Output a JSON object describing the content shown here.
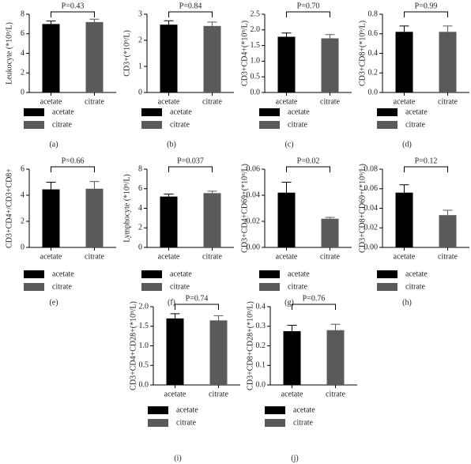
{
  "chart_data": [
    {
      "type": "bar",
      "panel": "(a)",
      "ylabel": "Leukocyte (*10⁹/L)",
      "annotation": "P=0.43",
      "categories": [
        "acetate",
        "citrate"
      ],
      "series": [
        {
          "name": "acetate",
          "color": "#000000",
          "values": [
            7.0,
            null
          ],
          "errors": [
            0.3,
            null
          ]
        },
        {
          "name": "citrate",
          "color": "#5a5a5a",
          "values": [
            null,
            7.2
          ],
          "errors": [
            null,
            0.3
          ]
        }
      ],
      "ylim": [
        0,
        8
      ],
      "yticks": [
        0,
        2,
        4,
        6,
        8
      ]
    },
    {
      "type": "bar",
      "panel": "(b)",
      "ylabel": "CD3+(*10⁹/L)",
      "annotation": "P=0.84",
      "categories": [
        "acetate",
        "citrate"
      ],
      "series": [
        {
          "name": "acetate",
          "color": "#000000",
          "values": [
            2.6,
            null
          ],
          "errors": [
            0.15,
            null
          ]
        },
        {
          "name": "citrate",
          "color": "#5a5a5a",
          "values": [
            null,
            2.55
          ],
          "errors": [
            null,
            0.15
          ]
        }
      ],
      "ylim": [
        0,
        3
      ],
      "yticks": [
        0,
        1,
        2,
        3
      ]
    },
    {
      "type": "bar",
      "panel": "(c)",
      "ylabel": "CD3+CD4+(*10⁹/L)",
      "annotation": "P=0.70",
      "categories": [
        "acetate",
        "citrate"
      ],
      "series": [
        {
          "name": "acetate",
          "color": "#000000",
          "values": [
            1.78,
            null
          ],
          "errors": [
            0.12,
            null
          ]
        },
        {
          "name": "citrate",
          "color": "#5a5a5a",
          "values": [
            null,
            1.73
          ],
          "errors": [
            null,
            0.12
          ]
        }
      ],
      "ylim": [
        0,
        2.5
      ],
      "yticks": [
        {
          "value": 0,
          "label": "0.0"
        },
        0.5,
        {
          "value": 1,
          "label": "1.0"
        },
        1.5,
        {
          "value": 2,
          "label": "2.0"
        },
        2.5
      ]
    },
    {
      "type": "bar",
      "panel": "(d)",
      "ylabel": "CD3+CD8+(*10⁹/L)",
      "annotation": "P=0.99",
      "categories": [
        "acetate",
        "citrate"
      ],
      "series": [
        {
          "name": "acetate",
          "color": "#000000",
          "values": [
            0.62,
            null
          ],
          "errors": [
            0.06,
            null
          ]
        },
        {
          "name": "citrate",
          "color": "#5a5a5a",
          "values": [
            null,
            0.62
          ],
          "errors": [
            null,
            0.06
          ]
        }
      ],
      "ylim": [
        0,
        0.8
      ],
      "yticks": [
        {
          "value": 0,
          "label": "0.0"
        },
        0.2,
        0.4,
        0.6,
        0.8
      ]
    },
    {
      "type": "bar",
      "panel": "(e)",
      "ylabel": "CD3+CD4+/CD3+CD8+",
      "annotation": "P=0.66",
      "categories": [
        "acetate",
        "citrate"
      ],
      "series": [
        {
          "name": "acetate",
          "color": "#000000",
          "values": [
            4.45,
            null
          ],
          "errors": [
            0.55,
            null
          ]
        },
        {
          "name": "citrate",
          "color": "#5a5a5a",
          "values": [
            null,
            4.5
          ],
          "errors": [
            null,
            0.55
          ]
        }
      ],
      "ylim": [
        0,
        6
      ],
      "yticks": [
        0,
        2,
        4,
        6
      ]
    },
    {
      "type": "bar",
      "panel": "(f)",
      "ylabel": "Lymphocyte (*10⁹/L)",
      "annotation": "P=0.037",
      "categories": [
        "acetate",
        "citrate"
      ],
      "series": [
        {
          "name": "acetate",
          "color": "#000000",
          "values": [
            5.2,
            null
          ],
          "errors": [
            0.25,
            null
          ]
        },
        {
          "name": "citrate",
          "color": "#5a5a5a",
          "values": [
            null,
            5.55
          ],
          "errors": [
            null,
            0.2
          ]
        }
      ],
      "ylim": [
        0,
        8
      ],
      "yticks": [
        0,
        2,
        4,
        6,
        8
      ]
    },
    {
      "type": "bar",
      "panel": "(g)",
      "ylabel": "CD3+CD4+CD69+(*10⁹/L)",
      "annotation": "P=0.02",
      "categories": [
        "acetate",
        "citrate"
      ],
      "series": [
        {
          "name": "acetate",
          "color": "#000000",
          "values": [
            0.042,
            null
          ],
          "errors": [
            0.008,
            null
          ]
        },
        {
          "name": "citrate",
          "color": "#5a5a5a",
          "values": [
            null,
            0.022
          ],
          "errors": [
            null,
            0.001
          ]
        }
      ],
      "ylim": [
        0,
        0.06
      ],
      "yticks": [
        {
          "value": 0,
          "label": "0.00"
        },
        0.02,
        0.04,
        0.06
      ]
    },
    {
      "type": "bar",
      "panel": "(h)",
      "ylabel": "CD3+CD8+CD69+(*10⁹/L)",
      "annotation": "P=0.12",
      "categories": [
        "acetate",
        "citrate"
      ],
      "series": [
        {
          "name": "acetate",
          "color": "#000000",
          "values": [
            0.056,
            null
          ],
          "errors": [
            0.008,
            null
          ]
        },
        {
          "name": "citrate",
          "color": "#5a5a5a",
          "values": [
            null,
            0.033
          ],
          "errors": [
            null,
            0.005
          ]
        }
      ],
      "ylim": [
        0,
        0.08
      ],
      "yticks": [
        {
          "value": 0,
          "label": "0.00"
        },
        0.02,
        0.04,
        0.06,
        0.08
      ]
    },
    {
      "type": "bar",
      "panel": "(i)",
      "ylabel": "CD3+CD4+CD28+(*10⁹/L)",
      "annotation": "P=0.74",
      "categories": [
        "acetate",
        "citrate"
      ],
      "series": [
        {
          "name": "acetate",
          "color": "#000000",
          "values": [
            1.7,
            null
          ],
          "errors": [
            0.12,
            null
          ]
        },
        {
          "name": "citrate",
          "color": "#5a5a5a",
          "values": [
            null,
            1.65
          ],
          "errors": [
            null,
            0.12
          ]
        }
      ],
      "ylim": [
        0,
        2
      ],
      "yticks": [
        {
          "value": 0,
          "label": "0.0"
        },
        0.5,
        {
          "value": 1,
          "label": "1.0"
        },
        1.5,
        {
          "value": 2,
          "label": "2.0"
        }
      ]
    },
    {
      "type": "bar",
      "panel": "(j)",
      "ylabel": "CD3+CD8+CD28+(*10⁹/L)",
      "annotation": "P=0.76",
      "categories": [
        "acetate",
        "citrate"
      ],
      "series": [
        {
          "name": "acetate",
          "color": "#000000",
          "values": [
            0.275,
            null
          ],
          "errors": [
            0.03,
            null
          ]
        },
        {
          "name": "citrate",
          "color": "#5a5a5a",
          "values": [
            null,
            0.28
          ],
          "errors": [
            null,
            0.03
          ]
        }
      ],
      "ylim": [
        0,
        0.4
      ],
      "yticks": [
        {
          "value": 0,
          "label": "0.0"
        },
        0.1,
        0.2,
        0.3,
        0.4
      ]
    }
  ]
}
